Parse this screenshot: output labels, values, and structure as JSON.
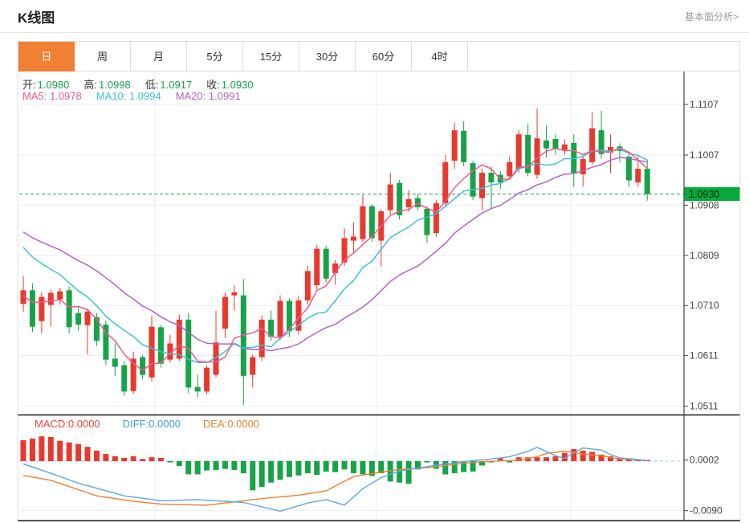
{
  "header": {
    "title": "K线图",
    "link_label": "基本面分析>"
  },
  "tabs": [
    {
      "label": "日",
      "active": true
    },
    {
      "label": "周",
      "active": false
    },
    {
      "label": "月",
      "active": false
    },
    {
      "label": "5分",
      "active": false
    },
    {
      "label": "15分",
      "active": false
    },
    {
      "label": "30分",
      "active": false
    },
    {
      "label": "60分",
      "active": false
    },
    {
      "label": "4时",
      "active": false
    }
  ],
  "legend": {
    "ohlc": [
      {
        "label": "开:",
        "value": "1.0980"
      },
      {
        "label": "高:",
        "value": "1.0998"
      },
      {
        "label": "低:",
        "value": "1.0917"
      },
      {
        "label": "收:",
        "value": "1.0930"
      }
    ],
    "ma": [
      {
        "label": "MA5:",
        "value": "1.0978"
      },
      {
        "label": "MA10:",
        "value": "1.0994"
      },
      {
        "label": "MA20:",
        "value": "1.0991"
      }
    ]
  },
  "macd_legend": [
    {
      "label": "MACD:",
      "value": "0.0000"
    },
    {
      "label": "DIFF:",
      "value": "0.0000"
    },
    {
      "label": "DEA:",
      "value": "0.0000"
    }
  ],
  "chart_data": {
    "type": "candlestick",
    "title": "K线图",
    "period": "日",
    "price_ticks": [
      "1.1107",
      "1.1007",
      "1.0908",
      "1.0809",
      "1.0710",
      "1.0611",
      "1.0511"
    ],
    "macd_ticks": [
      "0.0002",
      "-0.0090"
    ],
    "current_price": "1.0930",
    "candles_ohlc": [
      [
        1.0713,
        1.0768,
        1.0697,
        1.074
      ],
      [
        1.074,
        1.0754,
        1.0658,
        1.0668
      ],
      [
        1.0679,
        1.0736,
        1.0655,
        1.0727
      ],
      [
        1.0711,
        1.0741,
        1.0668,
        1.0735
      ],
      [
        1.0722,
        1.0745,
        1.0712,
        1.0738
      ],
      [
        1.074,
        1.0748,
        1.0655,
        1.0667
      ],
      [
        1.0695,
        1.071,
        1.066,
        1.0672
      ],
      [
        1.0671,
        1.0704,
        1.0613,
        1.0698
      ],
      [
        1.0687,
        1.0695,
        1.063,
        1.064
      ],
      [
        1.0672,
        1.068,
        1.0592,
        1.0603
      ],
      [
        1.0605,
        1.0635,
        1.0571,
        1.0589
      ],
      [
        1.0592,
        1.06,
        1.0532,
        1.054
      ],
      [
        1.0541,
        1.0619,
        1.0536,
        1.0605
      ],
      [
        1.0608,
        1.0612,
        1.0564,
        1.0573
      ],
      [
        1.0568,
        1.069,
        1.056,
        1.0668
      ],
      [
        1.0667,
        1.0672,
        1.0587,
        1.0595
      ],
      [
        1.0603,
        1.0652,
        1.0597,
        1.0635
      ],
      [
        1.0605,
        1.0692,
        1.06,
        1.0682
      ],
      [
        1.0682,
        1.0695,
        1.0537,
        1.0548
      ],
      [
        1.0549,
        1.0573,
        1.0529,
        1.054
      ],
      [
        1.054,
        1.0592,
        1.0535,
        1.0587
      ],
      [
        1.0573,
        1.07,
        1.0568,
        1.0637
      ],
      [
        1.0664,
        1.0736,
        1.0645,
        1.0727
      ],
      [
        1.073,
        1.075,
        1.07,
        1.0736
      ],
      [
        1.073,
        1.0762,
        1.0513,
        1.0571
      ],
      [
        1.0573,
        1.0613,
        1.0548,
        1.0608
      ],
      [
        1.0608,
        1.069,
        1.06,
        1.0682
      ],
      [
        1.0682,
        1.07,
        1.064,
        1.0648
      ],
      [
        1.0648,
        1.073,
        1.0642,
        1.0719
      ],
      [
        1.0719,
        1.0724,
        1.0648,
        1.066
      ],
      [
        1.066,
        1.0728,
        1.0652,
        1.072
      ],
      [
        1.072,
        1.0788,
        1.0712,
        1.0778
      ],
      [
        1.075,
        1.083,
        1.0742,
        1.0822
      ],
      [
        1.0822,
        1.0828,
        1.0755,
        1.0763
      ],
      [
        1.0774,
        1.08,
        1.0751,
        1.0793
      ],
      [
        1.0795,
        1.0862,
        1.0788,
        1.0843
      ],
      [
        1.0838,
        1.0874,
        1.0815,
        1.0846
      ],
      [
        1.0841,
        1.0928,
        1.0835,
        1.0906
      ],
      [
        1.0906,
        1.091,
        1.0836,
        1.0843
      ],
      [
        1.0838,
        1.09,
        1.0787,
        1.0896
      ],
      [
        1.0898,
        1.0972,
        1.089,
        1.0949
      ],
      [
        1.0952,
        1.0958,
        1.088,
        1.0888
      ],
      [
        1.0904,
        1.0938,
        1.0895,
        1.092
      ],
      [
        1.0922,
        1.093,
        1.0898,
        1.0904
      ],
      [
        1.0901,
        1.0906,
        1.0833,
        1.0849
      ],
      [
        1.0853,
        1.0918,
        1.0846,
        1.0912
      ],
      [
        1.0912,
        1.1007,
        1.0905,
        1.0993
      ],
      [
        1.0996,
        1.1071,
        1.098,
        1.1056
      ],
      [
        1.1055,
        1.1074,
        1.0985,
        1.0993
      ],
      [
        1.0991,
        1.0996,
        1.0918,
        1.0925
      ],
      [
        1.0922,
        1.098,
        1.0898,
        1.0972
      ],
      [
        1.0972,
        1.0985,
        1.0901,
        1.0953
      ],
      [
        1.0968,
        1.0975,
        1.094,
        1.0953
      ],
      [
        1.0965,
        1.1004,
        1.0958,
        1.0993
      ],
      [
        1.098,
        1.1056,
        1.0972,
        1.1048
      ],
      [
        1.1047,
        1.1068,
        1.0965,
        1.0972
      ],
      [
        1.0968,
        1.1099,
        1.096,
        1.104
      ],
      [
        1.1036,
        1.1065,
        1.1002,
        1.102
      ],
      [
        1.1039,
        1.1048,
        1.1008,
        1.102
      ],
      [
        1.1017,
        1.1038,
        1.1008,
        1.1028
      ],
      [
        1.1031,
        1.1048,
        1.0944,
        1.0972
      ],
      [
        1.0969,
        1.1005,
        1.0945,
        1.0999
      ],
      [
        1.0993,
        1.1092,
        1.0988,
        1.106
      ],
      [
        1.1056,
        1.1094,
        1.1,
        1.1009
      ],
      [
        1.1012,
        1.1048,
        1.0972,
        1.1023
      ],
      [
        1.1024,
        1.103,
        1.0993,
        1.1015
      ],
      [
        1.1004,
        1.101,
        1.0944,
        1.0957
      ],
      [
        1.0953,
        1.1005,
        1.0944,
        1.098
      ],
      [
        1.098,
        1.0998,
        1.0917,
        1.093
      ]
    ],
    "ma_seeds": {
      "ma5": [
        1.073,
        1.0728,
        1.0725,
        1.0722
      ],
      "ma10": [
        1.0862,
        1.0855,
        1.0848,
        1.084,
        1.0833,
        1.0826,
        1.082,
        1.0815,
        1.081
      ],
      "ma20": [
        1.09,
        1.0896,
        1.0892,
        1.0888,
        1.0884,
        1.088,
        1.0876,
        1.0872,
        1.0868,
        1.0864,
        1.086,
        1.0855,
        1.085,
        1.0845,
        1.084,
        1.0833,
        1.0826,
        1.082,
        1.0815
      ]
    },
    "macd_histogram": [
      0.0038,
      0.0041,
      0.0045,
      0.0044,
      0.0037,
      0.0034,
      0.0031,
      0.0026,
      0.0019,
      0.0013,
      0.0009,
      0.0006,
      0.0009,
      0.0004,
      0.0007,
      0.0006,
      -0.0002,
      -0.0009,
      -0.0024,
      -0.0024,
      -0.0017,
      -0.0016,
      -0.0014,
      -0.0016,
      -0.0022,
      -0.0053,
      -0.0047,
      -0.0039,
      -0.0034,
      -0.0029,
      -0.0026,
      -0.0022,
      -0.0025,
      -0.0019,
      -0.002,
      -0.0015,
      -0.0022,
      -0.0024,
      -0.0027,
      -0.0022,
      -0.0037,
      -0.0039,
      -0.0041,
      -0.0015,
      -0.0002,
      -0.0014,
      -0.0024,
      -0.0022,
      -0.002,
      -0.0019,
      -0.0008,
      -0.0002,
      0.0005,
      -0.0001,
      0.0007,
      0.0007,
      0.0007,
      0.0007,
      0.0009,
      0.0015,
      0.0022,
      0.0019,
      0.0017,
      0.0012,
      0.0009,
      0.0006,
      0.0005,
      0.0002,
      0.0001
    ],
    "diff_line": [
      [
        1,
        -0.0005
      ],
      [
        4,
        -0.0022
      ],
      [
        7,
        -0.004
      ],
      [
        12,
        -0.0063
      ],
      [
        16,
        -0.0072
      ],
      [
        20,
        -0.007
      ],
      [
        25,
        -0.0075
      ],
      [
        29,
        -0.0091
      ],
      [
        32,
        -0.0076
      ],
      [
        34,
        -0.007
      ],
      [
        36,
        -0.008
      ],
      [
        38,
        -0.005
      ],
      [
        40,
        -0.003
      ],
      [
        42,
        -0.0018
      ],
      [
        45,
        -0.001
      ],
      [
        47,
        -0.0005
      ],
      [
        50,
        0.0001
      ],
      [
        52,
        0.0004
      ],
      [
        54,
        0.0008
      ],
      [
        56,
        0.0018
      ],
      [
        57,
        0.0025
      ],
      [
        59,
        0.001
      ],
      [
        60,
        0.0005
      ],
      [
        61,
        0.0015
      ],
      [
        62,
        0.0024
      ],
      [
        64,
        0.002
      ],
      [
        65,
        0.0012
      ],
      [
        66,
        0.0006
      ],
      [
        68,
        0.0003
      ],
      [
        69,
        0.0001
      ]
    ],
    "dea_line": [
      [
        1,
        -0.0026
      ],
      [
        4,
        -0.0035
      ],
      [
        9,
        -0.0063
      ],
      [
        13,
        -0.0073
      ],
      [
        16,
        -0.0078
      ],
      [
        21,
        -0.008
      ],
      [
        25,
        -0.0072
      ],
      [
        27,
        -0.0068
      ],
      [
        31,
        -0.0062
      ],
      [
        34,
        -0.0054
      ],
      [
        37,
        -0.0028
      ],
      [
        40,
        -0.002
      ],
      [
        42,
        -0.0015
      ],
      [
        45,
        -0.0012
      ],
      [
        47,
        -0.0008
      ],
      [
        49,
        -0.0004
      ],
      [
        51,
        -0.0001
      ],
      [
        55,
        0.0002
      ],
      [
        57,
        0.0008
      ],
      [
        58,
        0.0014
      ],
      [
        60,
        0.0018
      ],
      [
        61,
        0.0016
      ],
      [
        62,
        0.0013
      ],
      [
        64,
        0.001
      ],
      [
        65,
        0.0007
      ],
      [
        66,
        0.0004
      ],
      [
        68,
        0.0002
      ],
      [
        69,
        0.0001
      ]
    ],
    "colors": {
      "up": "#e8392d",
      "down": "#18a348",
      "ma5": "#f2588c",
      "ma10": "#3ec1d6",
      "ma20": "#b362c6",
      "diff": "#5ba7ea",
      "dea": "#f08030",
      "grid": "#e9eef3",
      "axis": "#444",
      "panel_border": "#1a1a1a",
      "price_line": "#1fa24a",
      "price_badge_bg": "#07a93c",
      "price_badge_text": "#0b2e13",
      "zero_line": "#a8cff0",
      "tick_text": "#444"
    },
    "layout": {
      "grid": true,
      "legend_position": "top-left",
      "y_axis": "right"
    }
  }
}
